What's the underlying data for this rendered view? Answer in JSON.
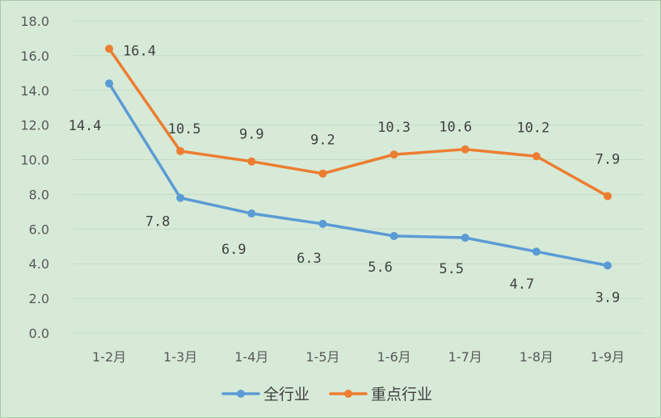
{
  "chart_data": {
    "type": "line",
    "title": "",
    "xlabel": "",
    "ylabel": "",
    "categories": [
      "1-2月",
      "1-3月",
      "1-4月",
      "1-5月",
      "1-6月",
      "1-7月",
      "1-8月",
      "1-9月"
    ],
    "ylim": [
      0,
      18
    ],
    "yticks": [
      "0.0",
      "2.0",
      "4.0",
      "6.0",
      "8.0",
      "10.0",
      "12.0",
      "14.0",
      "16.0",
      "18.0"
    ],
    "grid": true,
    "legend_position": "bottom",
    "background": "#d6ead7",
    "series": [
      {
        "name": "全行业",
        "color": "#5b9bd5",
        "values": [
          14.4,
          7.8,
          6.9,
          6.3,
          5.6,
          5.5,
          4.7,
          3.9
        ],
        "labels": [
          "14.4",
          "7.8",
          "6.9",
          "6.3",
          "5.6",
          "5.5",
          "4.7",
          "3.9"
        ]
      },
      {
        "name": "重点行业",
        "color": "#ed7d31",
        "values": [
          16.4,
          10.5,
          9.9,
          9.2,
          10.3,
          10.6,
          10.2,
          7.9
        ],
        "labels": [
          "16.4",
          "10.5",
          "9.9",
          "9.2",
          "10.3",
          "10.6",
          "10.2",
          "7.9"
        ]
      }
    ]
  }
}
